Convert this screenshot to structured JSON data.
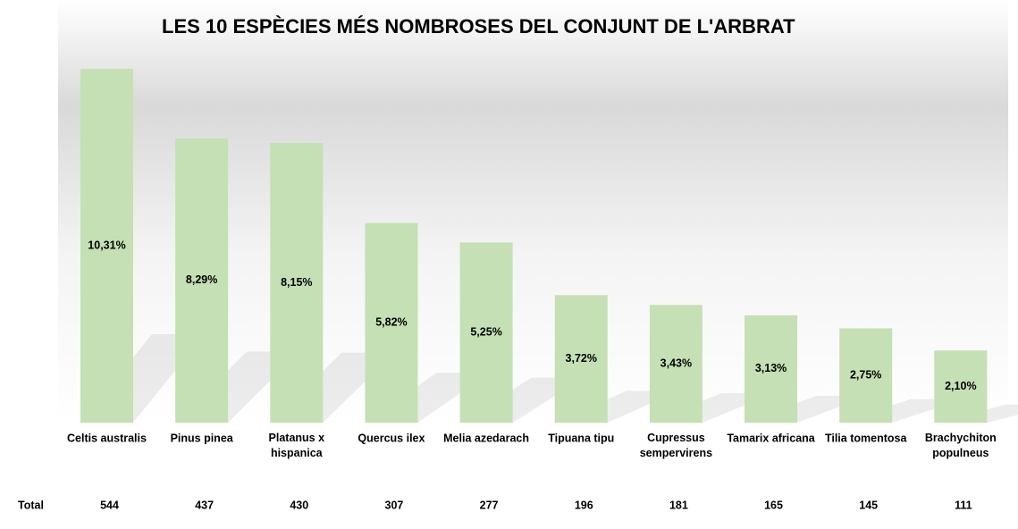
{
  "chart_data": {
    "type": "bar",
    "title": "LES 10 ESPÈCIES MÉS NOMBROSES DEL CONJUNT DE L'ARBRAT",
    "categories": [
      "Celtis australis",
      "Pinus pinea",
      "Platanus x hispanica",
      "Quercus ilex",
      "Melia azedarach",
      "Tipuana tipu",
      "Cupressus sempervirens",
      "Tamarix africana",
      "Tilia tomentosa",
      "Brachychiton populneus"
    ],
    "series": [
      {
        "name": "Total",
        "color": "#c5e0b4",
        "values": [
          544,
          437,
          430,
          307,
          277,
          196,
          181,
          165,
          145,
          111
        ]
      }
    ],
    "percent_values": [
      10.31,
      8.29,
      8.15,
      5.82,
      5.25,
      3.72,
      3.43,
      3.13,
      2.75,
      2.1
    ],
    "percent_labels": [
      "10,31%",
      "8,29%",
      "8,15%",
      "5,82%",
      "5,25%",
      "3,72%",
      "3,43%",
      "3,13%",
      "2,75%",
      "2,10%"
    ]
  }
}
